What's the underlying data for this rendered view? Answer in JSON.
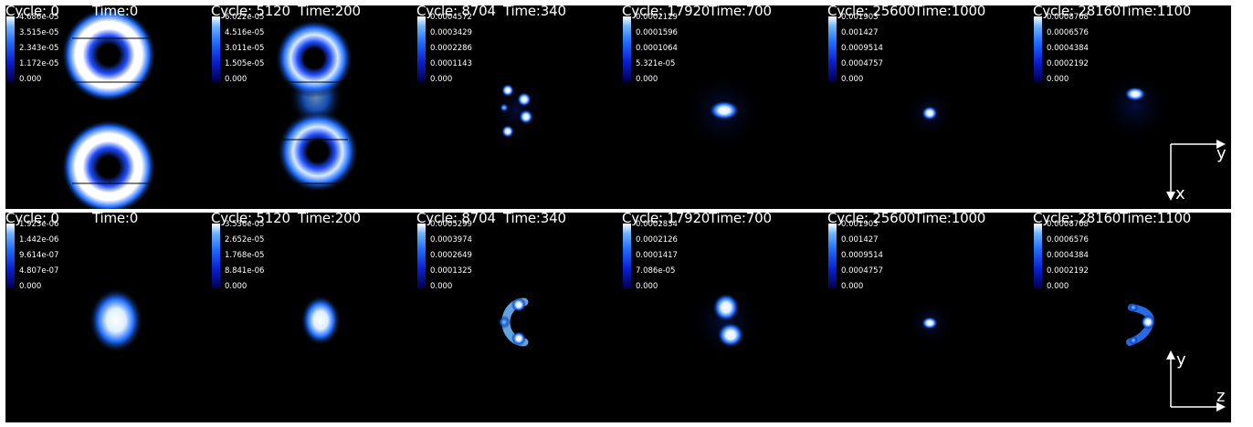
{
  "rows": [
    {
      "panels": [
        {
          "cycle": "Cycle: 0",
          "time": "Time:0",
          "ticks": [
            "4.686e-05",
            "3.515e-05",
            "2.343e-05",
            "1.172e-05",
            "0.000"
          ]
        },
        {
          "cycle": "Cycle: 5120",
          "time": "Time:200",
          "ticks": [
            "6.022e-05",
            "4.516e-05",
            "3.011e-05",
            "1.505e-05",
            "0.000"
          ]
        },
        {
          "cycle": "Cycle: 8704",
          "time": "Time:340",
          "ticks": [
            "0.0004572",
            "0.0003429",
            "0.0002286",
            "0.0001143",
            "0.000"
          ]
        },
        {
          "cycle": "Cycle: 17920",
          "time": "Time:700",
          "ticks": [
            "0.0002129",
            "0.0001596",
            "0.0001064",
            "5.321e-05",
            "0.000"
          ]
        },
        {
          "cycle": "Cycle: 25600",
          "time": "Time:1000",
          "ticks": [
            "0.001903",
            "0.001427",
            "0.0009514",
            "0.0004757",
            "0.000"
          ]
        },
        {
          "cycle": "Cycle: 28160",
          "time": "Time:1100",
          "ticks": [
            "0.0008768",
            "0.0006576",
            "0.0004384",
            "0.0002192",
            "0.000"
          ]
        }
      ]
    },
    {
      "panels": [
        {
          "cycle": "Cycle: 0",
          "time": "Time:0",
          "ticks": [
            "1.923e-06",
            "1.442e-06",
            "9.614e-07",
            "4.807e-07",
            "0.000"
          ]
        },
        {
          "cycle": "Cycle: 5120",
          "time": "Time:200",
          "ticks": [
            "3.536e-05",
            "2.652e-05",
            "1.768e-05",
            "8.841e-06",
            "0.000"
          ]
        },
        {
          "cycle": "Cycle: 8704",
          "time": "Time:340",
          "ticks": [
            "0.0005299",
            "0.0003974",
            "0.0002649",
            "0.0001325",
            "0.000"
          ]
        },
        {
          "cycle": "Cycle: 17920",
          "time": "Time:700",
          "ticks": [
            "0.0002834",
            "0.0002126",
            "0.0001417",
            "7.086e-05",
            "0.000"
          ]
        },
        {
          "cycle": "Cycle: 25600",
          "time": "Time:1000",
          "ticks": [
            "0.001903",
            "0.001427",
            "0.0009514",
            "0.0004757",
            "0.000"
          ]
        },
        {
          "cycle": "Cycle: 28160",
          "time": "Time:1100",
          "ticks": [
            "0.0008768",
            "0.0006576",
            "0.0004384",
            "0.0002192",
            "0.000"
          ]
        }
      ]
    }
  ],
  "axes": {
    "top": {
      "horizontal": "y",
      "vertical": "x"
    },
    "bottom": {
      "horizontal": "z",
      "vertical": "y"
    }
  },
  "colors": {
    "background": "#000000",
    "colormap_high": "#ffffff",
    "colormap_mid": "#1f6cff",
    "colormap_low": "#020050"
  }
}
